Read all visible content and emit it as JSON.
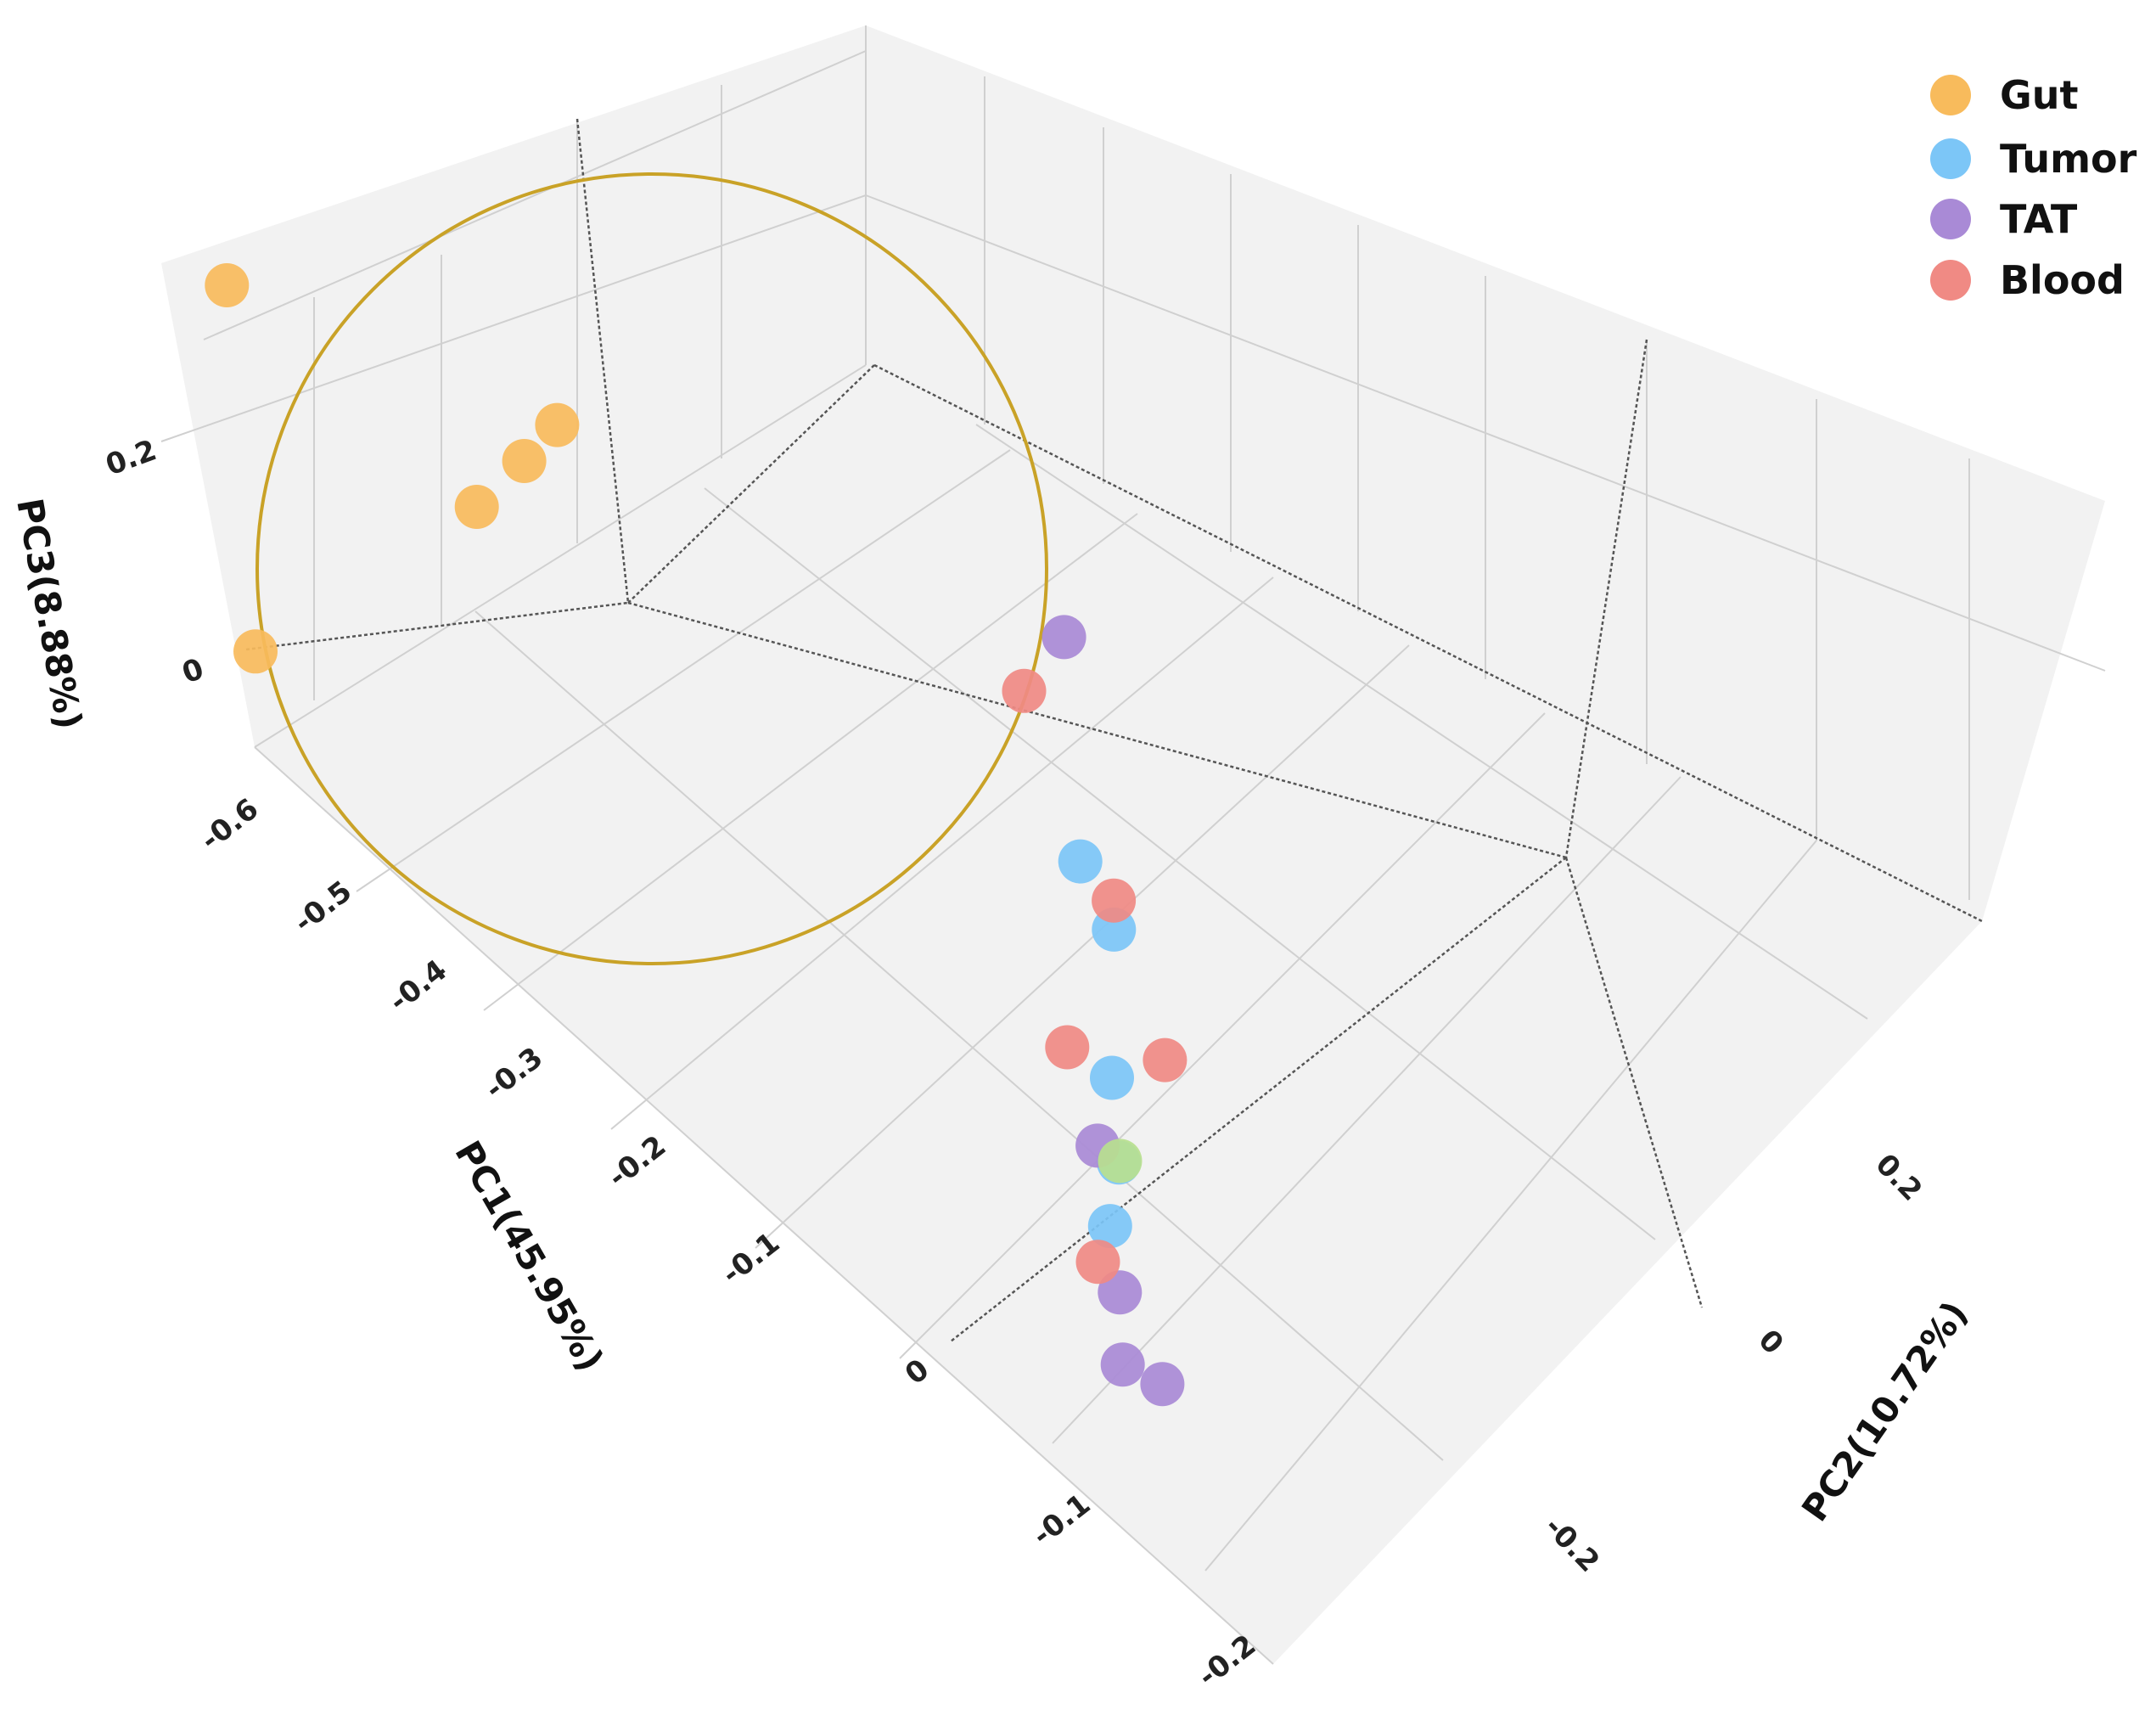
{
  "chart_data": {
    "type": "scatter",
    "dimensions": 3,
    "axes": {
      "x": {
        "label": "PC1(45.95%)",
        "ticks": [
          "-0.6",
          "-0.5",
          "-0.4",
          "-0.3",
          "-0.2",
          "-0.1",
          "0"
        ]
      },
      "y": {
        "label": "PC2(10.72%)",
        "ticks": [
          "0.2",
          "0",
          "-0.2"
        ]
      },
      "z": {
        "label": "PC3(8.88%)",
        "ticks": [
          "0.2",
          "0"
        ]
      },
      "depth_ticks": [
        "-0.1",
        "-0.2"
      ]
    },
    "legend": {
      "position": "top-right",
      "entries": [
        {
          "name": "Gut",
          "color": "#f8bb5c"
        },
        {
          "name": "Tumor",
          "color": "#7cc6f7"
        },
        {
          "name": "TAT",
          "color": "#a98ad6"
        },
        {
          "name": "Blood",
          "color": "#f08a84"
        }
      ]
    },
    "series": [
      {
        "name": "Gut",
        "color": "#f8bb5c",
        "points": [
          {
            "pc1": -0.62,
            "pc2": 0.05,
            "pc3": 0.22
          },
          {
            "pc1": -0.56,
            "pc2": -0.05,
            "pc3": 0.02
          },
          {
            "pc1": -0.46,
            "pc2": 0.12,
            "pc3": 0.12
          },
          {
            "pc1": -0.44,
            "pc2": 0.16,
            "pc3": 0.15
          },
          {
            "pc1": -0.43,
            "pc2": 0.2,
            "pc3": 0.17
          }
        ]
      },
      {
        "name": "Tumor",
        "color": "#7cc6f7",
        "points": [
          {
            "pc1": -0.02,
            "pc2": 0.1,
            "pc3": 0.05
          },
          {
            "pc1": -0.01,
            "pc2": 0.15,
            "pc3": 0.0
          },
          {
            "pc1": 0.02,
            "pc2": 0.06,
            "pc3": -0.07
          },
          {
            "pc1": 0.03,
            "pc2": 0.05,
            "pc3": -0.12
          },
          {
            "pc1": 0.05,
            "pc2": -0.03,
            "pc3": -0.14
          }
        ]
      },
      {
        "name": "TAT",
        "color": "#a98ad6",
        "points": [
          {
            "pc1": -0.08,
            "pc2": 0.24,
            "pc3": 0.15
          },
          {
            "pc1": 0.03,
            "pc2": 0.0,
            "pc3": -0.1
          },
          {
            "pc1": 0.08,
            "pc2": -0.1,
            "pc3": -0.16
          },
          {
            "pc1": 0.09,
            "pc2": -0.12,
            "pc3": -0.2
          },
          {
            "pc1": 0.1,
            "pc2": -0.06,
            "pc3": -0.22
          }
        ]
      },
      {
        "name": "Blood",
        "color": "#f08a84",
        "points": [
          {
            "pc1": -0.07,
            "pc2": 0.12,
            "pc3": 0.14
          },
          {
            "pc1": -0.02,
            "pc2": 0.18,
            "pc3": 0.01
          },
          {
            "pc1": 0.0,
            "pc2": 0.02,
            "pc3": -0.05
          },
          {
            "pc1": 0.02,
            "pc2": 0.18,
            "pc3": -0.08
          },
          {
            "pc1": 0.07,
            "pc2": -0.12,
            "pc3": -0.14
          }
        ]
      },
      {
        "name": "",
        "color": "#b9df8f",
        "points": [
          {
            "pc1": 0.04,
            "pc2": 0.02,
            "pc3": -0.11
          }
        ]
      }
    ],
    "annotation": {
      "type": "circle",
      "color": "#c9a227",
      "encloses": "Gut"
    }
  }
}
